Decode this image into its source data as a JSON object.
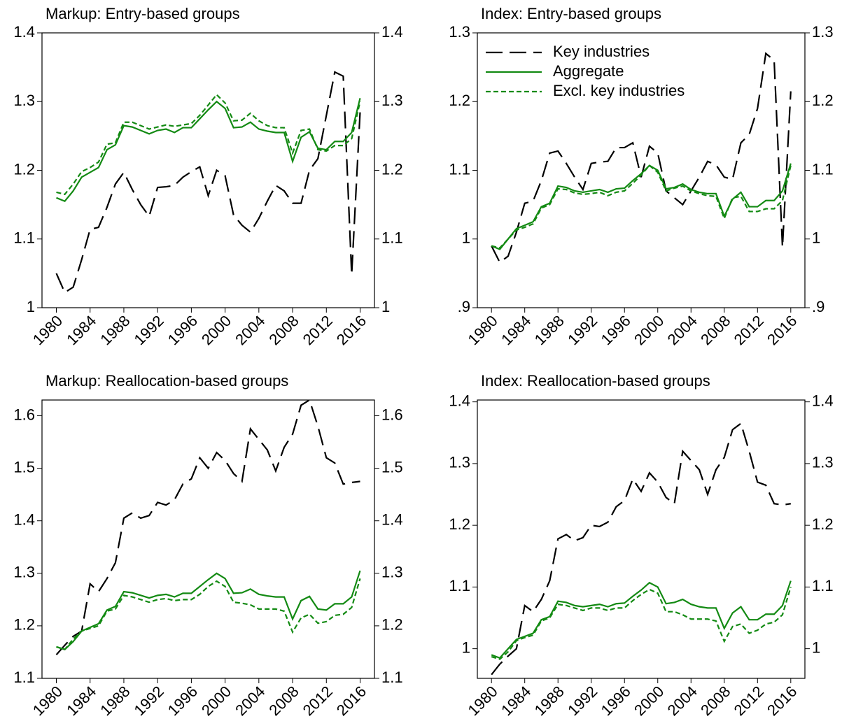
{
  "chart_data": [
    {
      "type": "line",
      "title": "Markup: Entry-based groups",
      "x": [
        1980,
        1981,
        1982,
        1983,
        1984,
        1985,
        1986,
        1987,
        1988,
        1989,
        1990,
        1991,
        1992,
        1993,
        1994,
        1995,
        1996,
        1997,
        1998,
        1999,
        2000,
        2001,
        2002,
        2003,
        2004,
        2005,
        2006,
        2007,
        2008,
        2009,
        2010,
        2011,
        2012,
        2013,
        2014,
        2015,
        2016
      ],
      "xlim": [
        1978.3,
        2017.7
      ],
      "xticks": [
        1980,
        1984,
        1988,
        1992,
        1996,
        2000,
        2004,
        2008,
        2012,
        2016
      ],
      "ylim": [
        1.0,
        1.4
      ],
      "yticks": [
        1,
        1.1,
        1.2,
        1.3,
        1.4
      ],
      "series": [
        {
          "color": "#000000",
          "linestyle": "longdash",
          "values": [
            1.05,
            1.022,
            1.03,
            1.07,
            1.114,
            1.117,
            1.146,
            1.18,
            1.197,
            1.172,
            1.15,
            1.133,
            1.175,
            1.176,
            1.178,
            1.19,
            1.198,
            1.205,
            1.163,
            1.2,
            1.192,
            1.135,
            1.12,
            1.11,
            1.13,
            1.155,
            1.178,
            1.17,
            1.152,
            1.152,
            1.2,
            1.217,
            1.28,
            1.343,
            1.337,
            1.048,
            1.285
          ]
        },
        {
          "color": "#138a13",
          "linestyle": "solid",
          "values": [
            1.16,
            1.155,
            1.17,
            1.19,
            1.197,
            1.204,
            1.23,
            1.237,
            1.265,
            1.263,
            1.258,
            1.253,
            1.258,
            1.26,
            1.255,
            1.262,
            1.262,
            1.275,
            1.288,
            1.3,
            1.29,
            1.262,
            1.263,
            1.27,
            1.26,
            1.257,
            1.255,
            1.255,
            1.213,
            1.248,
            1.256,
            1.232,
            1.23,
            1.242,
            1.242,
            1.255,
            1.305
          ]
        },
        {
          "color": "#138a13",
          "linestyle": "dash",
          "values": [
            1.168,
            1.165,
            1.18,
            1.198,
            1.204,
            1.212,
            1.238,
            1.24,
            1.27,
            1.27,
            1.265,
            1.26,
            1.263,
            1.266,
            1.264,
            1.266,
            1.268,
            1.28,
            1.295,
            1.31,
            1.298,
            1.272,
            1.273,
            1.283,
            1.272,
            1.265,
            1.262,
            1.262,
            1.225,
            1.258,
            1.26,
            1.23,
            1.228,
            1.236,
            1.236,
            1.246,
            1.3
          ]
        }
      ]
    },
    {
      "type": "line",
      "title": "Index: Entry-based groups",
      "x": [
        1980,
        1981,
        1982,
        1983,
        1984,
        1985,
        1986,
        1987,
        1988,
        1989,
        1990,
        1991,
        1992,
        1993,
        1994,
        1995,
        1996,
        1997,
        1998,
        1999,
        2000,
        2001,
        2002,
        2003,
        2004,
        2005,
        2006,
        2007,
        2008,
        2009,
        2010,
        2011,
        2012,
        2013,
        2014,
        2015,
        2016
      ],
      "xlim": [
        1978.3,
        2017.7
      ],
      "xticks": [
        1980,
        1984,
        1988,
        1992,
        1996,
        2000,
        2004,
        2008,
        2012,
        2016
      ],
      "ylim": [
        0.9,
        1.3
      ],
      "yticks": [
        {
          "value": 0.9,
          "label": ".9"
        },
        1,
        1.1,
        1.2,
        1.3
      ],
      "legend": "upper left",
      "series": [
        {
          "name": "Key industries",
          "color": "#000000",
          "linestyle": "longdash",
          "values": [
            0.99,
            0.966,
            0.975,
            1.01,
            1.052,
            1.055,
            1.085,
            1.125,
            1.128,
            1.11,
            1.09,
            1.072,
            1.11,
            1.112,
            1.113,
            1.133,
            1.133,
            1.14,
            1.09,
            1.135,
            1.125,
            1.07,
            1.06,
            1.05,
            1.07,
            1.09,
            1.113,
            1.108,
            1.09,
            1.087,
            1.14,
            1.152,
            1.19,
            1.27,
            1.26,
            0.988,
            1.215
          ]
        },
        {
          "name": "Aggregate",
          "color": "#138a13",
          "linestyle": "solid",
          "values": [
            0.99,
            0.985,
            1.0,
            1.015,
            1.02,
            1.025,
            1.047,
            1.052,
            1.077,
            1.075,
            1.07,
            1.068,
            1.07,
            1.072,
            1.068,
            1.073,
            1.074,
            1.085,
            1.095,
            1.107,
            1.1,
            1.073,
            1.075,
            1.08,
            1.072,
            1.068,
            1.066,
            1.066,
            1.033,
            1.058,
            1.068,
            1.047,
            1.047,
            1.056,
            1.056,
            1.07,
            1.11
          ]
        },
        {
          "name": "Excl. key industries",
          "color": "#138a13",
          "linestyle": "dash",
          "values": [
            0.99,
            0.987,
            1.0,
            1.013,
            1.017,
            1.022,
            1.045,
            1.05,
            1.073,
            1.072,
            1.067,
            1.065,
            1.066,
            1.068,
            1.063,
            1.068,
            1.07,
            1.081,
            1.093,
            1.107,
            1.097,
            1.07,
            1.074,
            1.077,
            1.07,
            1.066,
            1.063,
            1.062,
            1.03,
            1.06,
            1.062,
            1.04,
            1.04,
            1.044,
            1.044,
            1.056,
            1.107
          ]
        }
      ]
    },
    {
      "type": "line",
      "title": "Markup: Reallocation-based groups",
      "x": [
        1980,
        1981,
        1982,
        1983,
        1984,
        1985,
        1986,
        1987,
        1988,
        1989,
        1990,
        1991,
        1992,
        1993,
        1994,
        1995,
        1996,
        1997,
        1998,
        1999,
        2000,
        2001,
        2002,
        2003,
        2004,
        2005,
        2006,
        2007,
        2008,
        2009,
        2010,
        2011,
        2012,
        2013,
        2014,
        2015,
        2016
      ],
      "xlim": [
        1978.3,
        2017.7
      ],
      "xticks": [
        1980,
        1984,
        1988,
        1992,
        1996,
        2000,
        2004,
        2008,
        2012,
        2016
      ],
      "ylim": [
        1.1,
        1.63
      ],
      "yticks": [
        1.1,
        1.2,
        1.3,
        1.4,
        1.5,
        1.6
      ],
      "series": [
        {
          "color": "#000000",
          "linestyle": "longdash",
          "values": [
            1.145,
            1.163,
            1.18,
            1.19,
            1.28,
            1.265,
            1.29,
            1.32,
            1.405,
            1.415,
            1.405,
            1.41,
            1.435,
            1.43,
            1.44,
            1.47,
            1.48,
            1.52,
            1.5,
            1.53,
            1.515,
            1.49,
            1.475,
            1.575,
            1.555,
            1.535,
            1.495,
            1.54,
            1.565,
            1.62,
            1.63,
            1.58,
            1.52,
            1.51,
            1.47,
            1.473,
            1.475
          ]
        },
        {
          "color": "#138a13",
          "linestyle": "solid",
          "values": [
            1.16,
            1.155,
            1.17,
            1.19,
            1.197,
            1.204,
            1.23,
            1.237,
            1.265,
            1.263,
            1.258,
            1.253,
            1.258,
            1.26,
            1.255,
            1.262,
            1.262,
            1.275,
            1.288,
            1.3,
            1.29,
            1.262,
            1.263,
            1.27,
            1.26,
            1.257,
            1.255,
            1.255,
            1.213,
            1.248,
            1.256,
            1.232,
            1.23,
            1.242,
            1.242,
            1.255,
            1.305
          ]
        },
        {
          "color": "#138a13",
          "linestyle": "dash",
          "values": [
            1.16,
            1.155,
            1.175,
            1.19,
            1.195,
            1.2,
            1.228,
            1.232,
            1.258,
            1.255,
            1.25,
            1.245,
            1.25,
            1.252,
            1.248,
            1.25,
            1.25,
            1.26,
            1.275,
            1.285,
            1.275,
            1.245,
            1.243,
            1.24,
            1.232,
            1.232,
            1.232,
            1.228,
            1.188,
            1.215,
            1.222,
            1.205,
            1.208,
            1.22,
            1.222,
            1.235,
            1.29
          ]
        }
      ]
    },
    {
      "type": "line",
      "title": "Index: Reallocation-based groups",
      "x": [
        1980,
        1981,
        1982,
        1983,
        1984,
        1985,
        1986,
        1987,
        1988,
        1989,
        1990,
        1991,
        1992,
        1993,
        1994,
        1995,
        1996,
        1997,
        1998,
        1999,
        2000,
        2001,
        2002,
        2003,
        2004,
        2005,
        2006,
        2007,
        2008,
        2009,
        2010,
        2011,
        2012,
        2013,
        2014,
        2015,
        2016
      ],
      "xlim": [
        1978.3,
        2017.7
      ],
      "xticks": [
        1980,
        1984,
        1988,
        1992,
        1996,
        2000,
        2004,
        2008,
        2012,
        2016
      ],
      "ylim": [
        0.952,
        1.403
      ],
      "yticks": [
        1,
        1.1,
        1.2,
        1.3,
        1.4
      ],
      "series": [
        {
          "color": "#000000",
          "linestyle": "longdash",
          "values": [
            0.958,
            0.975,
            0.988,
            1.0,
            1.07,
            1.06,
            1.08,
            1.11,
            1.178,
            1.185,
            1.175,
            1.18,
            1.2,
            1.198,
            1.205,
            1.23,
            1.24,
            1.275,
            1.255,
            1.285,
            1.27,
            1.245,
            1.235,
            1.32,
            1.305,
            1.29,
            1.25,
            1.29,
            1.31,
            1.355,
            1.365,
            1.32,
            1.27,
            1.265,
            1.235,
            1.233,
            1.235
          ]
        },
        {
          "color": "#138a13",
          "linestyle": "solid",
          "values": [
            0.99,
            0.985,
            1.0,
            1.015,
            1.02,
            1.025,
            1.047,
            1.052,
            1.077,
            1.075,
            1.07,
            1.068,
            1.07,
            1.072,
            1.068,
            1.073,
            1.074,
            1.085,
            1.095,
            1.107,
            1.1,
            1.073,
            1.075,
            1.08,
            1.072,
            1.068,
            1.066,
            1.066,
            1.033,
            1.058,
            1.068,
            1.047,
            1.047,
            1.056,
            1.056,
            1.07,
            1.11
          ]
        },
        {
          "color": "#138a13",
          "linestyle": "dash",
          "values": [
            0.987,
            0.983,
            0.995,
            1.013,
            1.018,
            1.022,
            1.045,
            1.05,
            1.072,
            1.07,
            1.066,
            1.062,
            1.066,
            1.066,
            1.062,
            1.066,
            1.066,
            1.078,
            1.088,
            1.096,
            1.09,
            1.06,
            1.06,
            1.055,
            1.048,
            1.048,
            1.048,
            1.045,
            1.012,
            1.036,
            1.04,
            1.025,
            1.03,
            1.04,
            1.043,
            1.055,
            1.1
          ]
        }
      ]
    }
  ]
}
